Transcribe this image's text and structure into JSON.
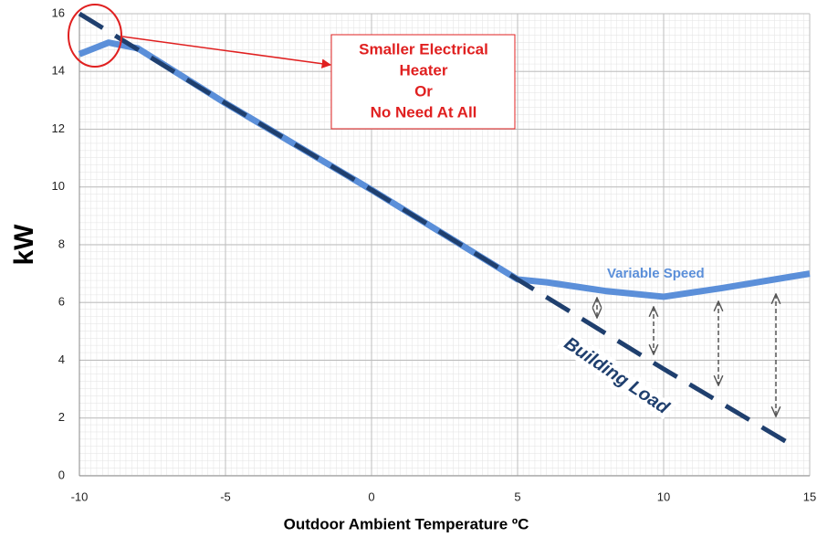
{
  "chart_data": {
    "type": "line",
    "xlabel": "Outdoor Ambient Temperature ºC",
    "ylabel": "kW",
    "xlim": [
      -10,
      15
    ],
    "xticks": [
      -10,
      -5,
      0,
      5,
      10,
      15
    ],
    "ylim": [
      0,
      16
    ],
    "yticks": [
      0,
      2,
      4,
      6,
      8,
      10,
      12,
      14,
      16
    ],
    "grid": true,
    "series": [
      {
        "name": "Building Load",
        "color": "#1f3f6e",
        "dashed": true,
        "x": [
          -10,
          -5,
          0,
          5,
          10,
          14.5
        ],
        "values": [
          16,
          12.9,
          9.9,
          6.8,
          3.7,
          1.0
        ]
      },
      {
        "name": "Variable Speed",
        "color": "#5b8fd9",
        "dashed": false,
        "x": [
          -10,
          -9,
          -8,
          -5,
          0,
          5,
          6,
          8,
          10,
          12,
          15
        ],
        "values": [
          14.6,
          15.0,
          14.8,
          12.9,
          9.9,
          6.8,
          6.7,
          6.4,
          6.2,
          6.5,
          7.0
        ]
      }
    ],
    "annotations": [
      {
        "lines": [
          "Smaller Electrical",
          "Heater",
          "Or",
          "No Need At All"
        ],
        "color": "#e02020"
      }
    ]
  }
}
